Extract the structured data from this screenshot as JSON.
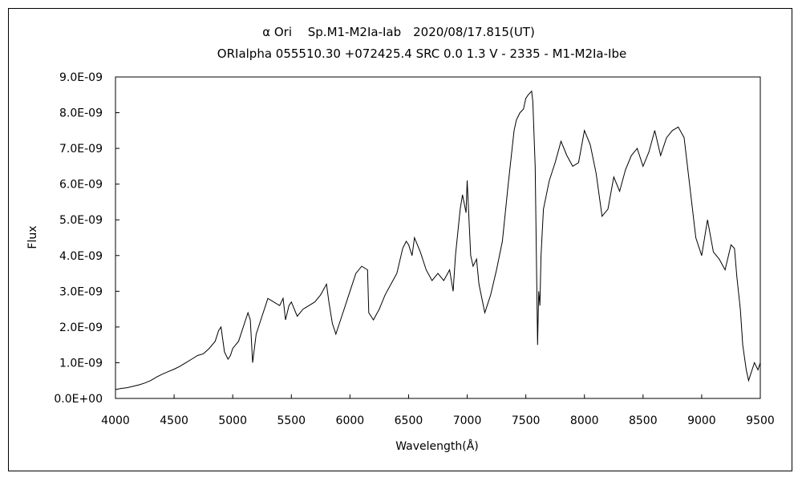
{
  "chart_data": {
    "type": "line",
    "title": "α Ori　 Sp.M1-M2Ia-Iab　2020/08/17.815(UT)",
    "subtitle": "ORIalpha 055510.30 +072425.4 SRC 0.0 1.3 V - 2335 - M1-M2Ia-Ibe",
    "xlabel": "Wavelength(Å)",
    "ylabel": "Flux",
    "xlim": [
      4000,
      9500
    ],
    "ylim": [
      0,
      9e-09
    ],
    "x_ticks": [
      4000,
      4500,
      5000,
      5500,
      6000,
      6500,
      7000,
      7500,
      8000,
      8500,
      9000,
      9500
    ],
    "x_tick_labels": [
      "4000",
      "4500",
      "5000",
      "5500",
      "6000",
      "6500",
      "7000",
      "7500",
      "8000",
      "8500",
      "9000",
      "9500"
    ],
    "y_ticks": [
      0,
      1e-09,
      2e-09,
      3e-09,
      4e-09,
      5e-09,
      6e-09,
      7e-09,
      8e-09,
      9e-09
    ],
    "y_tick_labels": [
      "0.0E+00",
      "1.0E-09",
      "2.0E-09",
      "3.0E-09",
      "4.0E-09",
      "5.0E-09",
      "6.0E-09",
      "7.0E-09",
      "8.0E-09",
      "9.0E-09"
    ],
    "grid": false,
    "legend": "none",
    "line_color": "#000000",
    "series": [
      {
        "x": [
          4000,
          4050,
          4100,
          4150,
          4200,
          4250,
          4300,
          4350,
          4400,
          4450,
          4500,
          4550,
          4600,
          4650,
          4700,
          4750,
          4800,
          4850,
          4880,
          4900,
          4930,
          4960,
          4980,
          5000,
          5050,
          5100,
          5130,
          5150,
          5170,
          5200,
          5250,
          5280,
          5300,
          5350,
          5400,
          5430,
          5450,
          5480,
          5500,
          5550,
          5600,
          5650,
          5700,
          5750,
          5800,
          5820,
          5850,
          5880,
          5900,
          5950,
          6000,
          6050,
          6100,
          6150,
          6160,
          6200,
          6250,
          6300,
          6350,
          6400,
          6450,
          6480,
          6500,
          6530,
          6550,
          6600,
          6650,
          6700,
          6750,
          6800,
          6850,
          6880,
          6900,
          6940,
          6960,
          6990,
          7000,
          7030,
          7050,
          7080,
          7100,
          7150,
          7200,
          7250,
          7300,
          7350,
          7400,
          7420,
          7450,
          7480,
          7500,
          7520,
          7550,
          7560,
          7580,
          7600,
          7610,
          7620,
          7630,
          7650,
          7700,
          7750,
          7800,
          7850,
          7900,
          7950,
          8000,
          8050,
          8100,
          8150,
          8200,
          8250,
          8300,
          8350,
          8400,
          8450,
          8500,
          8550,
          8600,
          8650,
          8700,
          8750,
          8800,
          8850,
          8900,
          8950,
          9000,
          9050,
          9100,
          9150,
          9200,
          9250,
          9280,
          9300,
          9330,
          9350,
          9380,
          9400,
          9420,
          9450,
          9480,
          9500
        ],
        "y": [
          2.5e-10,
          2.8e-10,
          3e-10,
          3.4e-10,
          3.8e-10,
          4.3e-10,
          5e-10,
          6e-10,
          6.8e-10,
          7.5e-10,
          8.2e-10,
          9e-10,
          1e-09,
          1.1e-09,
          1.2e-09,
          1.25e-09,
          1.4e-09,
          1.6e-09,
          1.9e-09,
          2e-09,
          1.3e-09,
          1.1e-09,
          1.2e-09,
          1.4e-09,
          1.6e-09,
          2.1e-09,
          2.4e-09,
          2.2e-09,
          1e-09,
          1.8e-09,
          2.3e-09,
          2.6e-09,
          2.8e-09,
          2.7e-09,
          2.6e-09,
          2.8e-09,
          2.2e-09,
          2.6e-09,
          2.7e-09,
          2.3e-09,
          2.5e-09,
          2.6e-09,
          2.7e-09,
          2.9e-09,
          3.2e-09,
          2.7e-09,
          2.1e-09,
          1.8e-09,
          2e-09,
          2.5e-09,
          3e-09,
          3.5e-09,
          3.7e-09,
          3.6e-09,
          2.4e-09,
          2.2e-09,
          2.5e-09,
          2.9e-09,
          3.2e-09,
          3.5e-09,
          4.2e-09,
          4.4e-09,
          4.3e-09,
          4e-09,
          4.5e-09,
          4.1e-09,
          3.6e-09,
          3.3e-09,
          3.5e-09,
          3.3e-09,
          3.6e-09,
          3e-09,
          4e-09,
          5.3e-09,
          5.7e-09,
          5.2e-09,
          6.1e-09,
          4e-09,
          3.7e-09,
          3.9e-09,
          3.2e-09,
          2.4e-09,
          2.9e-09,
          3.6e-09,
          4.4e-09,
          6e-09,
          7.5e-09,
          7.8e-09,
          8e-09,
          8.1e-09,
          8.4e-09,
          8.5e-09,
          8.6e-09,
          8.3e-09,
          6.5e-09,
          1.5e-09,
          3e-09,
          2.6e-09,
          4e-09,
          5.3e-09,
          6.1e-09,
          6.6e-09,
          7.2e-09,
          6.8e-09,
          6.5e-09,
          6.6e-09,
          7.5e-09,
          7.1e-09,
          6.3e-09,
          5.1e-09,
          5.3e-09,
          6.2e-09,
          5.8e-09,
          6.4e-09,
          6.8e-09,
          7e-09,
          6.5e-09,
          6.9e-09,
          7.5e-09,
          6.8e-09,
          7.3e-09,
          7.5e-09,
          7.6e-09,
          7.3e-09,
          5.9e-09,
          4.5e-09,
          4e-09,
          5e-09,
          4.1e-09,
          3.9e-09,
          3.6e-09,
          4.3e-09,
          4.2e-09,
          3.4e-09,
          2.5e-09,
          1.5e-09,
          8e-10,
          5e-10,
          7e-10,
          1e-09,
          8e-10,
          1e-09
        ]
      }
    ]
  }
}
